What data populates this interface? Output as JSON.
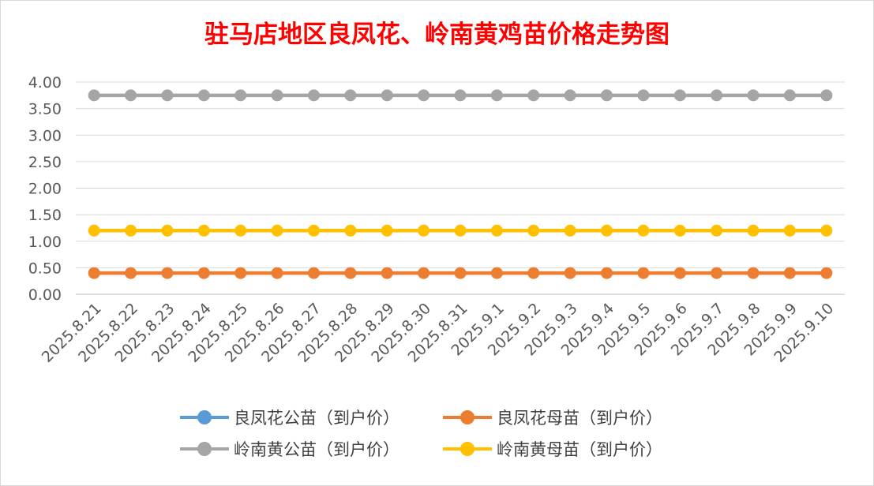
{
  "chart_data": {
    "type": "line",
    "title": "驻马店地区良凤花、岭南黄鸡苗价格走势图",
    "xlabel": "",
    "ylabel": "",
    "ylim": [
      0,
      4
    ],
    "y_ticks": [
      "0.00",
      "0.50",
      "1.00",
      "1.50",
      "2.00",
      "2.50",
      "3.00",
      "3.50",
      "4.00"
    ],
    "grid": true,
    "legend_position": "bottom",
    "categories": [
      "2025.8.21",
      "2025.8.22",
      "2025.8.23",
      "2025.8.24",
      "2025.8.25",
      "2025.8.26",
      "2025.8.27",
      "2025.8.28",
      "2025.8.29",
      "2025.8.30",
      "2025.8.31",
      "2025.9.1",
      "2025.9.2",
      "2025.9.3",
      "2025.9.4",
      "2025.9.5",
      "2025.9.6",
      "2025.9.7",
      "2025.9.8",
      "2025.9.9",
      "2025.9.10"
    ],
    "series": [
      {
        "name": "良凤花公苗（到户价）",
        "color": "#5b9bd5",
        "values": [
          null,
          null,
          null,
          null,
          null,
          null,
          null,
          null,
          null,
          null,
          null,
          null,
          null,
          null,
          null,
          null,
          null,
          null,
          null,
          null,
          null
        ]
      },
      {
        "name": "良凤花母苗（到户价）",
        "color": "#ed7d31",
        "values": [
          0.4,
          0.4,
          0.4,
          0.4,
          0.4,
          0.4,
          0.4,
          0.4,
          0.4,
          0.4,
          0.4,
          0.4,
          0.4,
          0.4,
          0.4,
          0.4,
          0.4,
          0.4,
          0.4,
          0.4,
          0.4
        ]
      },
      {
        "name": "岭南黄公苗（到户价）",
        "color": "#a5a5a5",
        "values": [
          3.75,
          3.75,
          3.75,
          3.75,
          3.75,
          3.75,
          3.75,
          3.75,
          3.75,
          3.75,
          3.75,
          3.75,
          3.75,
          3.75,
          3.75,
          3.75,
          3.75,
          3.75,
          3.75,
          3.75,
          3.75
        ]
      },
      {
        "name": "岭南黄母苗（到户价）",
        "color": "#ffc000",
        "values": [
          1.2,
          1.2,
          1.2,
          1.2,
          1.2,
          1.2,
          1.2,
          1.2,
          1.2,
          1.2,
          1.2,
          1.2,
          1.2,
          1.2,
          1.2,
          1.2,
          1.2,
          1.2,
          1.2,
          1.2,
          1.2
        ]
      }
    ]
  }
}
